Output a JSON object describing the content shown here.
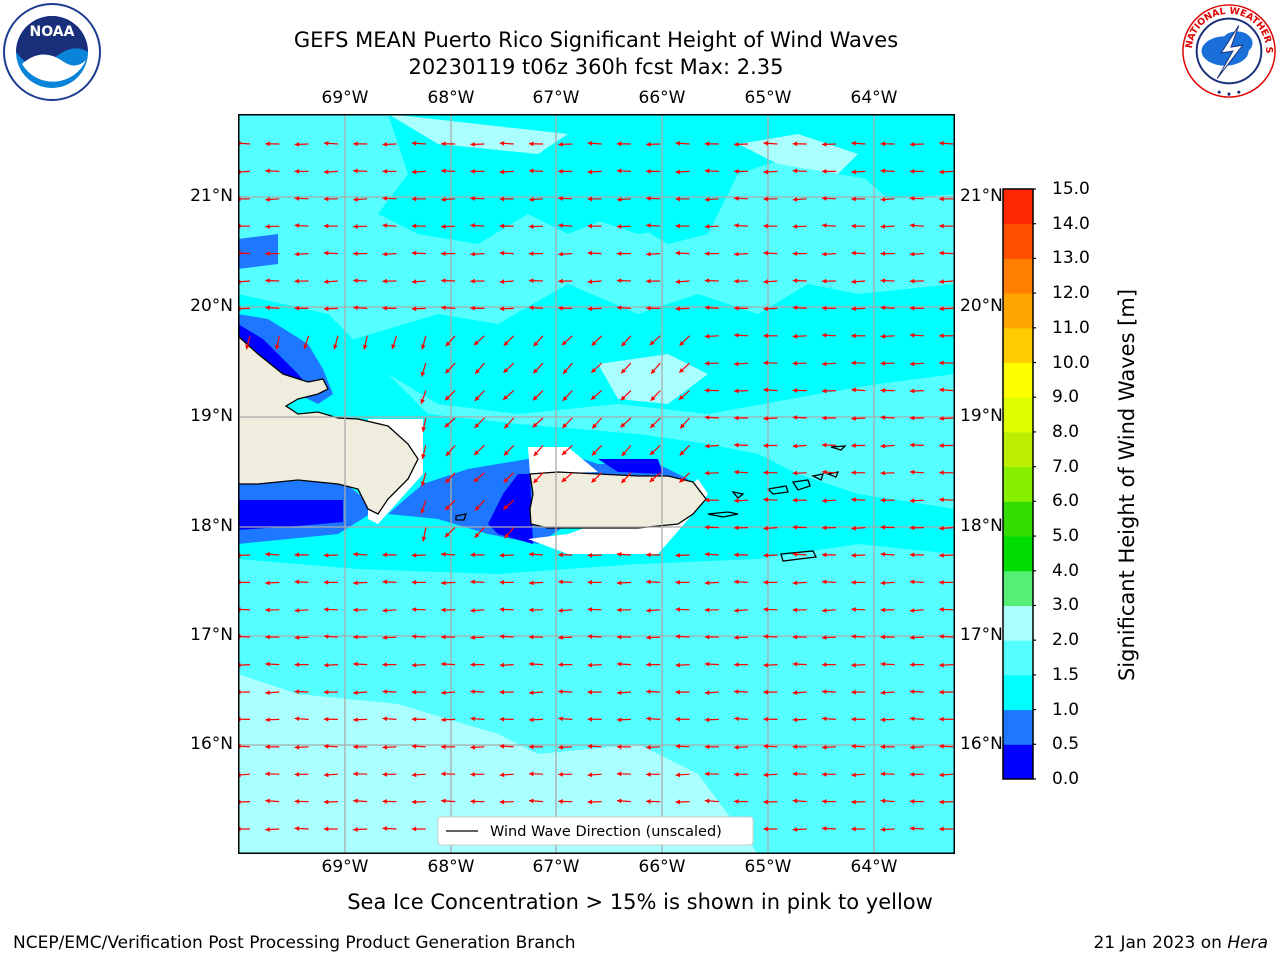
{
  "header": {
    "title_line1": "GEFS MEAN Puerto Rico Significant Height of Wind Waves",
    "title_line2": "20230119 t06z 360h fcst   Max: 2.35"
  },
  "logos": {
    "left": {
      "name": "noaa-logo",
      "text": "NOAA"
    },
    "right": {
      "name": "nws-logo",
      "text": "NATIONAL WEATHER SERVICE"
    }
  },
  "map": {
    "lon_labels": [
      "69°W",
      "68°W",
      "67°W",
      "66°W",
      "65°W",
      "64°W"
    ],
    "lat_labels": [
      "21°N",
      "20°N",
      "19°N",
      "18°N",
      "17°N",
      "16°N"
    ],
    "legend_label": "Wind Wave Direction (unscaled)",
    "arrow_color": "#ff0000",
    "land_color": "#efedde"
  },
  "colorbar": {
    "title": "Significant Height of Wind Waves [m]",
    "tick_labels": [
      "0.0",
      "0.5",
      "1.0",
      "1.5",
      "2.0",
      "3.0",
      "4.0",
      "5.0",
      "6.0",
      "7.0",
      "8.0",
      "9.0",
      "10.0",
      "11.0",
      "12.0",
      "13.0",
      "14.0",
      "15.0"
    ],
    "colors": [
      "#0000ff",
      "#1e78ff",
      "#00ffff",
      "#55ffff",
      "#aaffff",
      "#55ee77",
      "#00dd00",
      "#33dd00",
      "#88ee00",
      "#bbee00",
      "#ddff00",
      "#ffff00",
      "#ffcc00",
      "#ffa500",
      "#ff7f00",
      "#ff5000",
      "#ff2800"
    ]
  },
  "footer": {
    "note": "Sea Ice Concentration > 15% is shown in pink to yellow",
    "credit_left": "NCEP/EMC/Verification Post Processing Product Generation Branch",
    "credit_right_date": "21 Jan 2023 on",
    "credit_right_host": "Hera"
  }
}
